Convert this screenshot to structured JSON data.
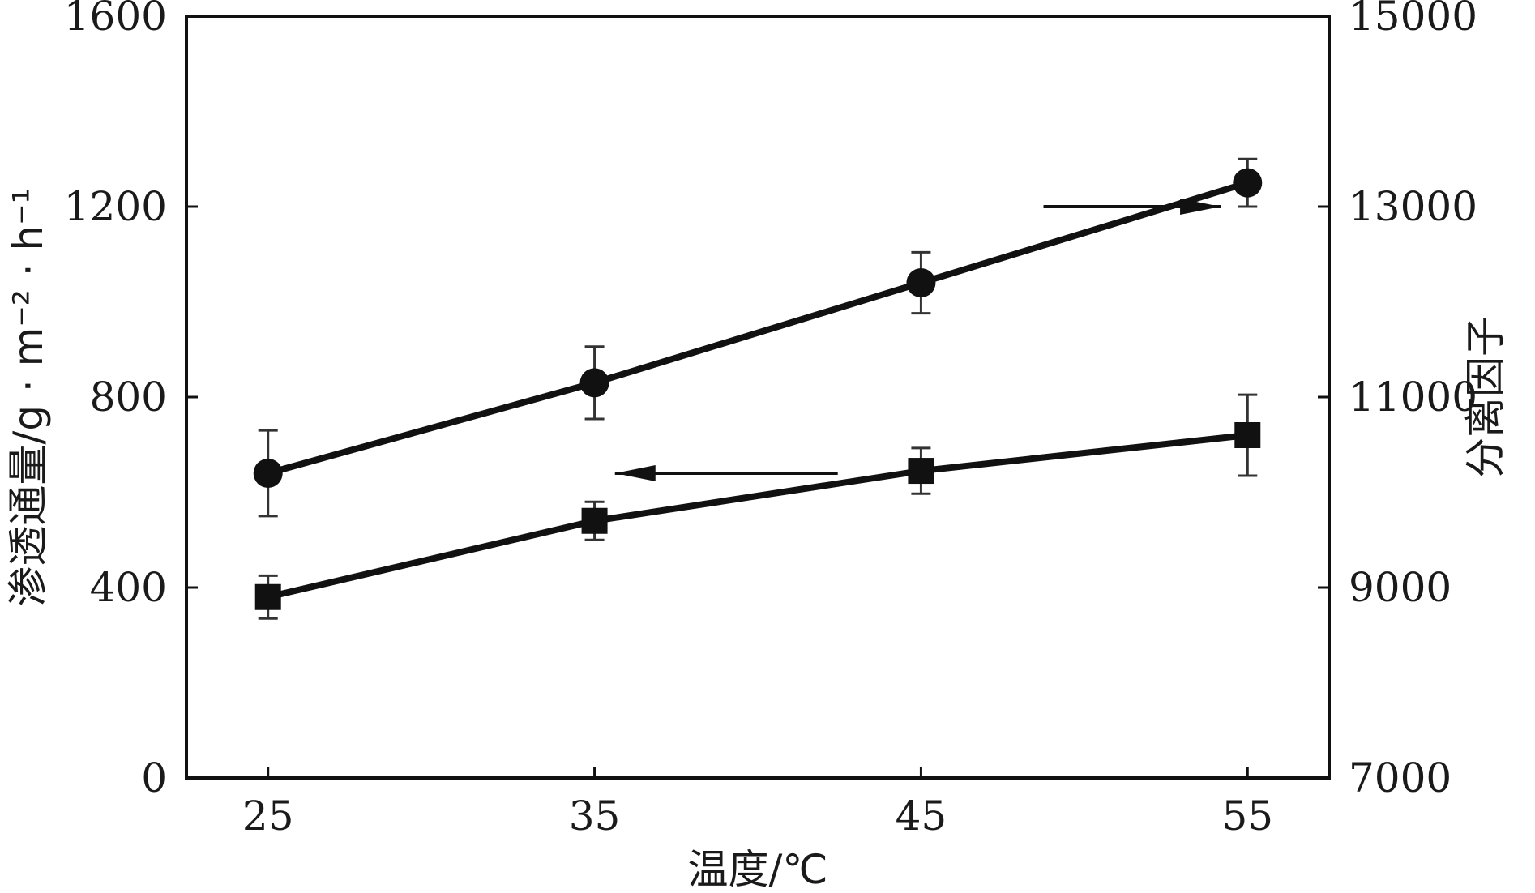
{
  "chart_data": {
    "type": "line",
    "title": "",
    "xlabel": "温度/℃",
    "ylabel_left": "渗透通量/g · m⁻² · h⁻¹",
    "ylabel_right": "分离因子",
    "x": [
      25,
      35,
      45,
      55
    ],
    "x_ticks": [
      "25",
      "35",
      "45",
      "55"
    ],
    "xlim": [
      22.5,
      57.5
    ],
    "ylim_left": [
      0,
      1600
    ],
    "ylim_right": [
      7000,
      15000
    ],
    "yticks_left": [
      "0",
      "400",
      "800",
      "1200",
      "1600"
    ],
    "yticks_right": [
      "7000",
      "9000",
      "11000",
      "13000",
      "15000"
    ],
    "series": [
      {
        "axis": "right",
        "marker": "circle",
        "values": [
          10200,
          11150,
          12200,
          13250
        ],
        "error": [
          450,
          380,
          320,
          250
        ]
      },
      {
        "axis": "left",
        "marker": "square",
        "values": [
          380,
          540,
          645,
          720
        ],
        "error": [
          45,
          40,
          48,
          85
        ]
      }
    ],
    "annotations": [
      {
        "type": "arrow",
        "direction": "right",
        "points_to": "right-axis",
        "series": 0
      },
      {
        "type": "arrow",
        "direction": "left",
        "points_to": "left-axis",
        "series": 1
      }
    ],
    "grid": false,
    "line_color": "#111111"
  }
}
